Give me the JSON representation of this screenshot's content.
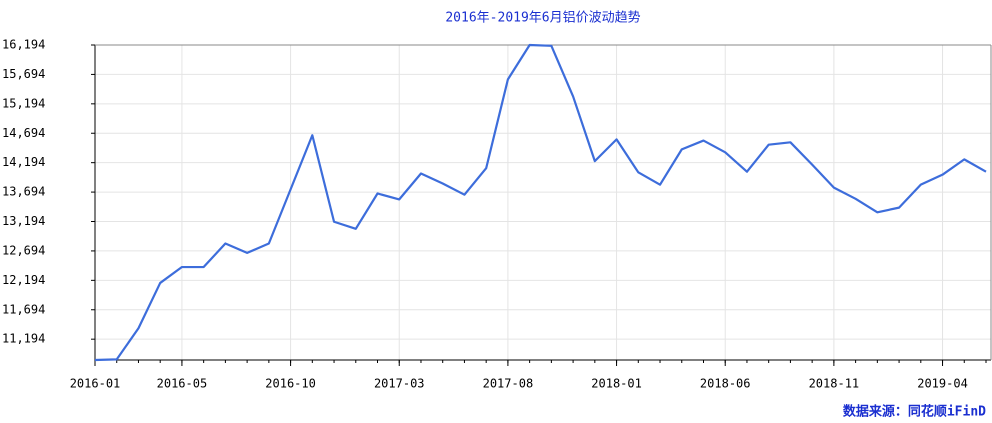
{
  "chart_data": {
    "type": "line",
    "title": "2016年-2019年6月铝价波动趋势",
    "source": "数据来源：同花顺iFinD",
    "categories": [
      "2016-01",
      null,
      null,
      null,
      "2016-05",
      null,
      null,
      null,
      null,
      "2016-10",
      null,
      null,
      null,
      null,
      "2017-03",
      null,
      null,
      null,
      null,
      "2017-08",
      null,
      null,
      null,
      null,
      "2018-01",
      null,
      null,
      null,
      null,
      "2018-06",
      null,
      null,
      null,
      null,
      "2018-11",
      null,
      null,
      null,
      null,
      "2019-04",
      null,
      null
    ],
    "series": [
      {
        "name": "铝价",
        "color": "#3d6ddb",
        "values": [
          10840,
          10850,
          11380,
          12150,
          12420,
          12420,
          12820,
          12660,
          12820,
          13740,
          14660,
          13190,
          13070,
          13670,
          13570,
          14010,
          13840,
          13650,
          14100,
          15610,
          16194,
          16180,
          15320,
          14220,
          14590,
          14030,
          13820,
          14420,
          14570,
          14370,
          14040,
          14500,
          14540,
          14160,
          13770,
          13580,
          13350,
          13430,
          13820,
          13990,
          14250,
          14040
        ]
      }
    ],
    "ylim": [
      10840,
      16194
    ],
    "yticks": [
      {
        "value": 11194,
        "label": "11,194"
      },
      {
        "value": 11694,
        "label": "11,694"
      },
      {
        "value": 12194,
        "label": "12,194"
      },
      {
        "value": 12694,
        "label": "12,694"
      },
      {
        "value": 13194,
        "label": "13,194"
      },
      {
        "value": 13694,
        "label": "13,694"
      },
      {
        "value": 14194,
        "label": "14,194"
      },
      {
        "value": 14694,
        "label": "14,694"
      },
      {
        "value": 15194,
        "label": "15,194"
      },
      {
        "value": 15694,
        "label": "15,694"
      },
      {
        "value": 16194,
        "label": "16,194"
      }
    ],
    "grid": true
  }
}
